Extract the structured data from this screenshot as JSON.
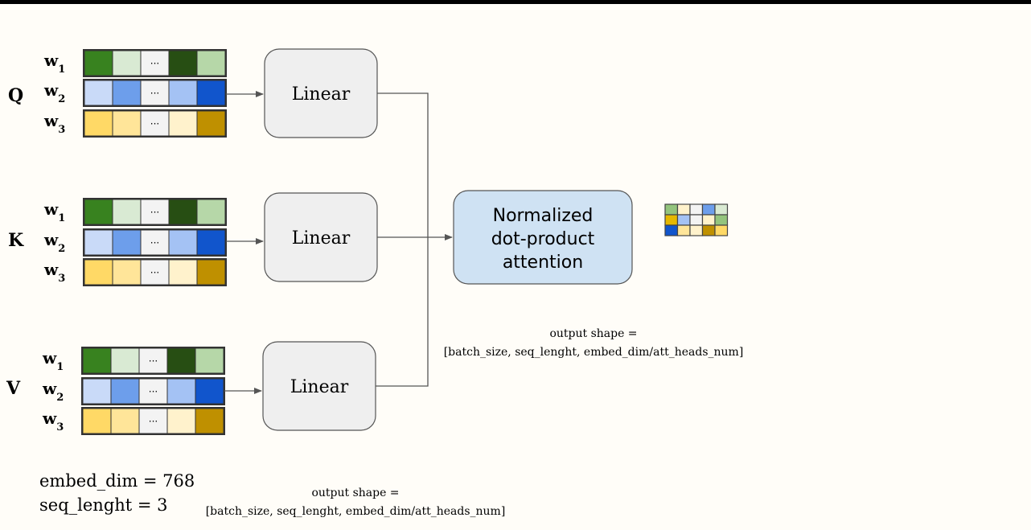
{
  "inputs": [
    {
      "label": "Q",
      "rows": [
        {
          "label": "w",
          "sub": "1",
          "cells": [
            "#38821f",
            "#d9ead3",
            "#f3f3f3",
            "#274e13",
            "#b6d7a8"
          ],
          "ellipsis": "..."
        },
        {
          "label": "w",
          "sub": "2",
          "cells": [
            "#c9daf8",
            "#6d9eeb",
            "#f3f3f3",
            "#a4c2f4",
            "#1155cc"
          ],
          "ellipsis": "..."
        },
        {
          "label": "w",
          "sub": "3",
          "cells": [
            "#ffd966",
            "#ffe599",
            "#f3f3f3",
            "#fff2cc",
            "#bf9000"
          ],
          "ellipsis": "..."
        }
      ]
    },
    {
      "label": "K",
      "rows": [
        {
          "label": "w",
          "sub": "1",
          "cells": [
            "#38821f",
            "#d9ead3",
            "#f3f3f3",
            "#274e13",
            "#b6d7a8"
          ],
          "ellipsis": "..."
        },
        {
          "label": "w",
          "sub": "2",
          "cells": [
            "#c9daf8",
            "#6d9eeb",
            "#f3f3f3",
            "#a4c2f4",
            "#1155cc"
          ],
          "ellipsis": "..."
        },
        {
          "label": "w",
          "sub": "3",
          "cells": [
            "#ffd966",
            "#ffe599",
            "#f3f3f3",
            "#fff2cc",
            "#bf9000"
          ],
          "ellipsis": "..."
        }
      ]
    },
    {
      "label": "V",
      "rows": [
        {
          "label": "w",
          "sub": "1",
          "cells": [
            "#38821f",
            "#d9ead3",
            "#f3f3f3",
            "#274e13",
            "#b6d7a8"
          ],
          "ellipsis": "..."
        },
        {
          "label": "w",
          "sub": "2",
          "cells": [
            "#c9daf8",
            "#6d9eeb",
            "#f3f3f3",
            "#a4c2f4",
            "#1155cc"
          ],
          "ellipsis": "..."
        },
        {
          "label": "w",
          "sub": "3",
          "cells": [
            "#ffd966",
            "#ffe599",
            "#f3f3f3",
            "#fff2cc",
            "#bf9000"
          ],
          "ellipsis": "..."
        }
      ]
    }
  ],
  "linear_label": "Linear",
  "attention": {
    "line1": "Normalized",
    "line2": "dot-product",
    "line3": "attention"
  },
  "output_shape_1": {
    "line1": "output shape =",
    "line2": "[batch_size, seq_lenght, embed_dim/att_heads_num]"
  },
  "output_shape_2": {
    "line1": "output shape =",
    "line2": "[batch_size, seq_lenght, embed_dim/att_heads_num]"
  },
  "params": {
    "embed_dim": "embed_dim = 768",
    "seq_length": "seq_lenght = 3"
  },
  "output_grid": [
    [
      "#93c47d",
      "#fff2cc",
      "#f3f3f3",
      "#6d9eeb",
      "#d9ead3"
    ],
    [
      "#e6b800",
      "#a4c2f4",
      "#f3f3f3",
      "#fff2cc",
      "#93c47d"
    ],
    [
      "#1155cc",
      "#ffe599",
      "#fff2cc",
      "#bf9000",
      "#ffd966"
    ]
  ],
  "colors": {
    "linear_fill": "#efefef",
    "attention_fill": "#cfe2f3",
    "stroke": "#555555",
    "cell_border": "#333333"
  }
}
